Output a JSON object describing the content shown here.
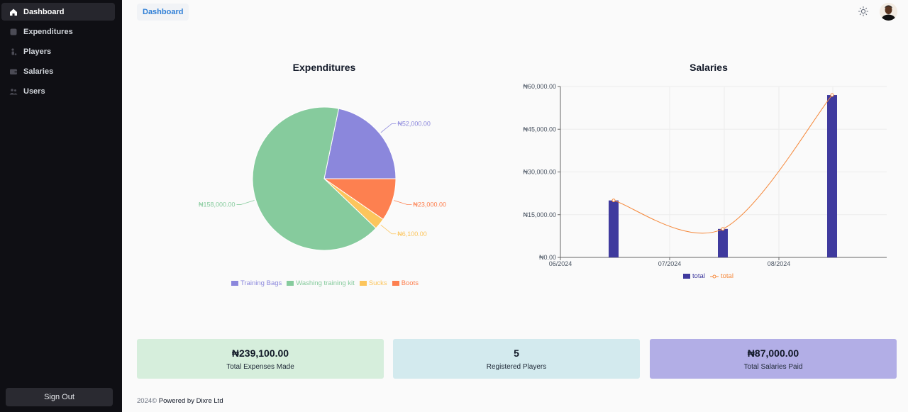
{
  "sidebar": {
    "items": [
      {
        "label": "Dashboard",
        "icon": "home-icon",
        "active": true
      },
      {
        "label": "Expenditures",
        "icon": "box-icon",
        "active": false
      },
      {
        "label": "Players",
        "icon": "player-icon",
        "active": false
      },
      {
        "label": "Salaries",
        "icon": "wallet-icon",
        "active": false
      },
      {
        "label": "Users",
        "icon": "users-icon",
        "active": false
      }
    ],
    "sign_out_label": "Sign Out"
  },
  "header": {
    "breadcrumb": "Dashboard",
    "theme_icon": "sun-icon",
    "avatar_icon": "user-avatar"
  },
  "charts": {
    "expenditures_title": "Expenditures",
    "salaries_title": "Salaries"
  },
  "chart_data": [
    {
      "type": "pie",
      "title": "Expenditures",
      "legend_position": "bottom-center",
      "slices": [
        {
          "name": "Training Bags",
          "value": 52000,
          "label": "₦52,000.00",
          "color": "#8b87dc"
        },
        {
          "name": "Boots",
          "value": 23000,
          "label": "₦23,000.00",
          "color": "#fd8050"
        },
        {
          "name": "Sucks",
          "value": 6100,
          "label": "₦6,100.00",
          "color": "#fcc55c"
        },
        {
          "name": "Washing training kit",
          "value": 158000,
          "label": "₦158,000.00",
          "color": "#86cb9d"
        }
      ],
      "legend": [
        "Training Bags",
        "Washing training kit",
        "Sucks",
        "Boots"
      ]
    },
    {
      "type": "bar",
      "title": "Salaries",
      "legend_position": "bottom-center",
      "grid": true,
      "x_ticks": [
        "06/2024",
        "07/2024",
        "08/2024"
      ],
      "y_ticks": [
        "₦0.00",
        "₦15,000.00",
        "₦30,000.00",
        "₦45,000.00",
        "₦60,000.00"
      ],
      "ylim": [
        0,
        60000
      ],
      "categories": [
        "06/2024",
        "07/2024",
        "08/2024"
      ],
      "series": [
        {
          "name": "total",
          "type": "bar",
          "color": "#3f3a9e",
          "values": [
            20000,
            10000,
            57000
          ]
        },
        {
          "name": "total",
          "type": "line",
          "color": "#f5883a",
          "values": [
            20000,
            10000,
            57000
          ]
        }
      ]
    }
  ],
  "stats": [
    {
      "value": "₦239,100.00",
      "label": "Total Expenses Made",
      "color": "#d6eedc"
    },
    {
      "value": "5",
      "label": "Registered Players",
      "color": "#d3eaee"
    },
    {
      "value": "₦87,000.00",
      "label": "Total Salaries Paid",
      "color": "#b2aee6"
    }
  ],
  "footer": {
    "year": "2024©",
    "text": "Powered by Dixre Ltd"
  }
}
